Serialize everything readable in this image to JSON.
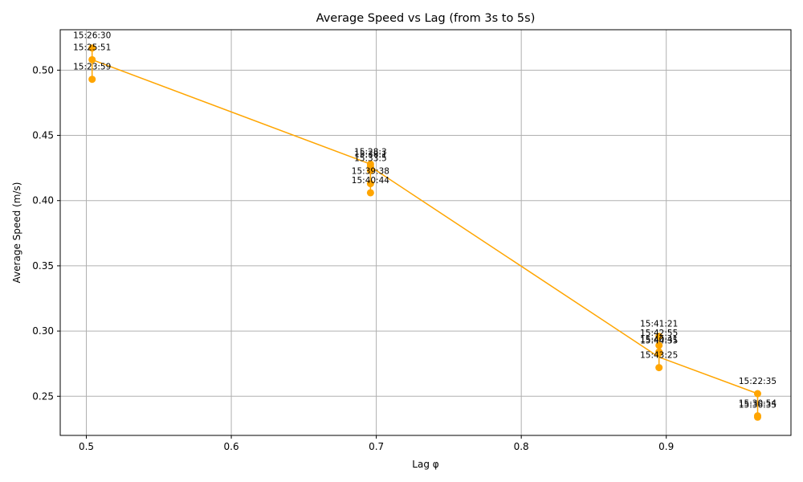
{
  "chart_data": {
    "type": "line",
    "title": "Average Speed vs Lag (from 3s to 5s)",
    "xlabel": "Lag φ",
    "ylabel": "Average Speed (m/s)",
    "xlim": [
      0.482,
      0.986
    ],
    "ylim": [
      0.22,
      0.531
    ],
    "x_ticks": [
      0.5,
      0.6,
      0.7,
      0.8,
      0.9
    ],
    "x_tick_labels": [
      "0.5",
      "0.6",
      "0.7",
      "0.8",
      "0.9"
    ],
    "y_ticks": [
      0.25,
      0.3,
      0.35,
      0.4,
      0.45,
      0.5
    ],
    "y_tick_labels": [
      "0.25",
      "0.30",
      "0.35",
      "0.40",
      "0.45",
      "0.50"
    ],
    "grid": true,
    "color": "#ffa500",
    "line_path": [
      {
        "x": 0.504,
        "y": 0.517
      },
      {
        "x": 0.504,
        "y": 0.508
      },
      {
        "x": 0.504,
        "y": 0.493
      },
      {
        "x": 0.504,
        "y": 0.508
      },
      {
        "x": 0.696,
        "y": 0.428
      },
      {
        "x": 0.696,
        "y": 0.426
      },
      {
        "x": 0.696,
        "y": 0.423
      },
      {
        "x": 0.696,
        "y": 0.413
      },
      {
        "x": 0.696,
        "y": 0.406
      },
      {
        "x": 0.696,
        "y": 0.426
      },
      {
        "x": 0.895,
        "y": 0.28
      },
      {
        "x": 0.895,
        "y": 0.296
      },
      {
        "x": 0.895,
        "y": 0.289
      },
      {
        "x": 0.895,
        "y": 0.284
      },
      {
        "x": 0.895,
        "y": 0.283
      },
      {
        "x": 0.895,
        "y": 0.272
      },
      {
        "x": 0.895,
        "y": 0.28
      },
      {
        "x": 0.963,
        "y": 0.252
      },
      {
        "x": 0.963,
        "y": 0.235
      },
      {
        "x": 0.963,
        "y": 0.234
      }
    ],
    "points": [
      {
        "x": 0.504,
        "y": 0.517,
        "label": "15:26:30"
      },
      {
        "x": 0.504,
        "y": 0.508,
        "label": "15:25:51"
      },
      {
        "x": 0.504,
        "y": 0.493,
        "label": "15:23:59"
      },
      {
        "x": 0.696,
        "y": 0.428,
        "label": "15:28:3"
      },
      {
        "x": 0.696,
        "y": 0.426,
        "label": "15:38:1"
      },
      {
        "x": 0.696,
        "y": 0.423,
        "label": "15:33:5"
      },
      {
        "x": 0.696,
        "y": 0.413,
        "label": "15:39:38"
      },
      {
        "x": 0.696,
        "y": 0.406,
        "label": "15:40:44"
      },
      {
        "x": 0.895,
        "y": 0.296,
        "label": "15:41:21"
      },
      {
        "x": 0.895,
        "y": 0.289,
        "label": "15:42:55"
      },
      {
        "x": 0.895,
        "y": 0.284,
        "label": "15:40:41"
      },
      {
        "x": 0.895,
        "y": 0.283,
        "label": "15:44:35"
      },
      {
        "x": 0.895,
        "y": 0.272,
        "label": "15:43:25"
      },
      {
        "x": 0.963,
        "y": 0.252,
        "label": "15:22:35"
      },
      {
        "x": 0.963,
        "y": 0.235,
        "label": "15:30:54"
      },
      {
        "x": 0.963,
        "y": 0.234,
        "label": "15:36:35"
      }
    ]
  }
}
